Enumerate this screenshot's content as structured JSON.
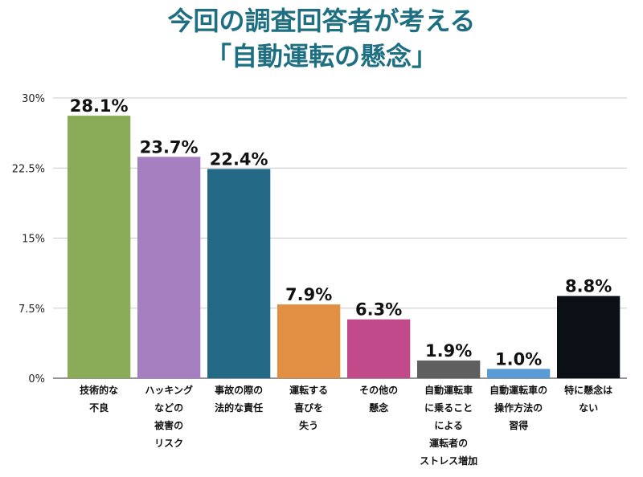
{
  "title_lines": [
    "今回の調査回答者が考える",
    "「自動運転の懸念」"
  ],
  "chart_data": {
    "type": "bar",
    "title": "今回の調査回答者が考える「自動運転の懸念」",
    "xlabel": "",
    "ylabel": "",
    "ylim": [
      0,
      30
    ],
    "yticks": [
      0,
      7.5,
      15,
      22.5,
      30
    ],
    "ytick_labels": [
      "0%",
      "7.5%",
      "15%",
      "22.5%",
      "30%"
    ],
    "grid": true,
    "categories": [
      [
        "技術的な",
        "不良"
      ],
      [
        "ハッキング",
        "などの",
        "被害の",
        "リスク"
      ],
      [
        "事故の際の",
        "法的な責任"
      ],
      [
        "運転する",
        "喜びを",
        "失う"
      ],
      [
        "その他の",
        "懸念"
      ],
      [
        "自動運転車",
        "に乗ること",
        "による",
        "運転者の",
        "ストレス増加"
      ],
      [
        "自動運転車の",
        "操作方法の",
        "習得"
      ],
      [
        "特に懸念は",
        "ない"
      ]
    ],
    "values": [
      28.1,
      23.7,
      22.4,
      7.9,
      6.3,
      1.9,
      1.0,
      8.8
    ],
    "value_labels": [
      "28.1%",
      "23.7%",
      "22.4%",
      "7.9%",
      "6.3%",
      "1.9%",
      "1.0%",
      "8.8%"
    ],
    "colors": [
      "#8aab57",
      "#a67fc0",
      "#236986",
      "#e08f43",
      "#c04a8a",
      "#5f5f5f",
      "#5b9bd5",
      "#0b0f16"
    ]
  }
}
